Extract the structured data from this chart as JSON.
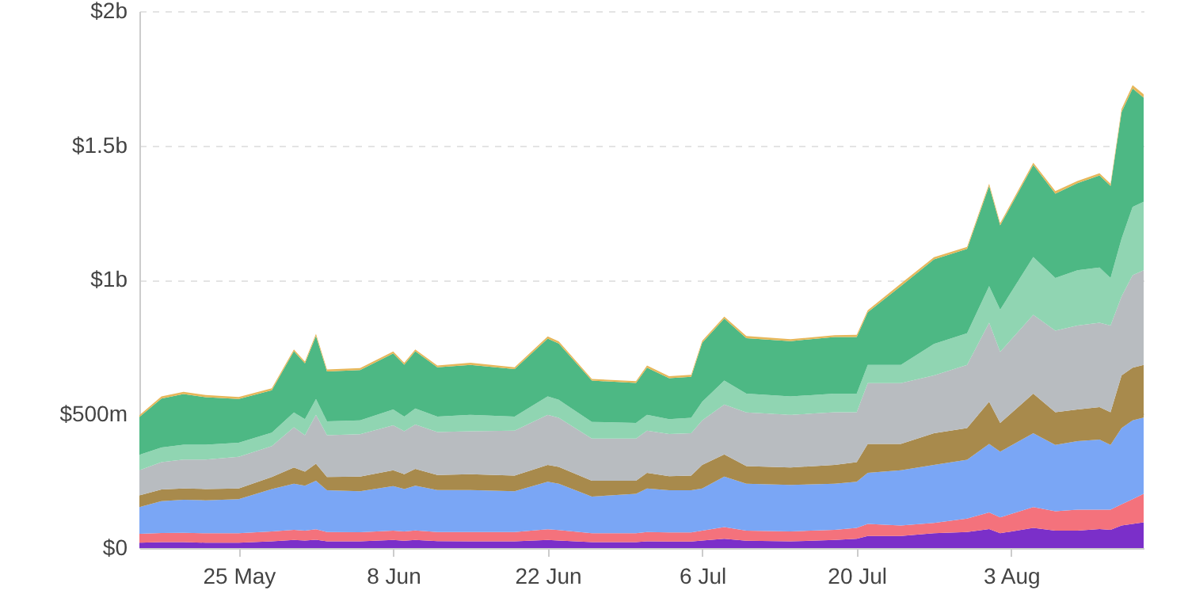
{
  "chart_data": {
    "type": "area",
    "stacked": true,
    "grid": "y",
    "x": [
      "--05-16",
      "--05-18",
      "--05-20",
      "--05-22",
      "--05-25",
      "--05-28",
      "--05-30",
      "--05-31",
      "--06-01",
      "--06-02",
      "--06-05",
      "--06-08",
      "--06-09",
      "--06-10",
      "--06-12",
      "--06-15",
      "--06-19",
      "--06-22",
      "--06-23",
      "--06-26",
      "--06-30",
      "--07-01",
      "--07-03",
      "--07-05",
      "--07-06",
      "--07-08",
      "--07-10",
      "--07-14",
      "--07-18",
      "--07-20",
      "--07-21",
      "--07-24",
      "--07-27",
      "--07-30",
      "--08-01",
      "--08-02",
      "--08-05",
      "--08-07",
      "--08-09",
      "--08-11",
      "--08-12",
      "--08-13",
      "--08-14",
      "--08-15"
    ],
    "xlim": [
      "--05-16",
      "--08-15"
    ],
    "xticks": [
      {
        "value": "--05-25",
        "label": "25 May"
      },
      {
        "value": "--06-08",
        "label": "8 Jun"
      },
      {
        "value": "--06-22",
        "label": "22 Jun"
      },
      {
        "value": "--07-06",
        "label": "6 Jul"
      },
      {
        "value": "--07-20",
        "label": "20 Jul"
      },
      {
        "value": "--08-03",
        "label": "3 Aug"
      }
    ],
    "ylim": [
      0,
      2000000000
    ],
    "yticks": [
      {
        "value": 0,
        "label": "$0"
      },
      {
        "value": 500000000,
        "label": "$500m"
      },
      {
        "value": 1000000000,
        "label": "$1b"
      },
      {
        "value": 1500000000,
        "label": "$1.5b"
      },
      {
        "value": 2000000000,
        "label": "$2b"
      }
    ],
    "series": [
      {
        "color": "#7b2fc9",
        "values": [
          20000000,
          22000000,
          22000000,
          20000000,
          20000000,
          25000000,
          30000000,
          28000000,
          31000000,
          25000000,
          25000000,
          30000000,
          27000000,
          30000000,
          26000000,
          25000000,
          25000000,
          30000000,
          28000000,
          22000000,
          22000000,
          25000000,
          24000000,
          24000000,
          28000000,
          35000000,
          27000000,
          25000000,
          30000000,
          35000000,
          45000000,
          45000000,
          55000000,
          60000000,
          71000000,
          55000000,
          75000000,
          65000000,
          65000000,
          71000000,
          68000000,
          84000000,
          90000000,
          96000000
        ]
      },
      {
        "color": "#f4727c",
        "values": [
          33000000,
          34000000,
          35000000,
          35000000,
          35000000,
          37000000,
          38000000,
          37000000,
          39000000,
          35000000,
          34000000,
          35000000,
          35000000,
          36000000,
          34000000,
          35000000,
          35000000,
          40000000,
          39000000,
          33000000,
          33000000,
          35000000,
          34000000,
          34000000,
          37000000,
          43000000,
          38000000,
          37000000,
          38000000,
          40000000,
          45000000,
          39000000,
          39000000,
          50000000,
          62000000,
          59000000,
          78000000,
          72000000,
          78000000,
          72000000,
          75000000,
          79000000,
          92000000,
          106000000
        ]
      },
      {
        "color": "#7aa6f5",
        "values": [
          100000000,
          119000000,
          123000000,
          123000000,
          127000000,
          158000000,
          172000000,
          167000000,
          181000000,
          155000000,
          153000000,
          166000000,
          158000000,
          166000000,
          156000000,
          156000000,
          152000000,
          177000000,
          173000000,
          137000000,
          147000000,
          162000000,
          157000000,
          157000000,
          157000000,
          188000000,
          175000000,
          173000000,
          172000000,
          172000000,
          190000000,
          206000000,
          216000000,
          219000000,
          255000000,
          245000000,
          275000000,
          247000000,
          255000000,
          261000000,
          241000000,
          284000000,
          294000000,
          284000000
        ]
      },
      {
        "color": "#a88a4c",
        "values": [
          43000000,
          43000000,
          42000000,
          42000000,
          40000000,
          45000000,
          60000000,
          53000000,
          63000000,
          50000000,
          54000000,
          59000000,
          55000000,
          63000000,
          56000000,
          59000000,
          58000000,
          63000000,
          62000000,
          59000000,
          49000000,
          58000000,
          53000000,
          55000000,
          88000000,
          83000000,
          65000000,
          65000000,
          70000000,
          73000000,
          108000000,
          98000000,
          118000000,
          118000000,
          157000000,
          107000000,
          147000000,
          122000000,
          118000000,
          121000000,
          122000000,
          196000000,
          196000000,
          196000000
        ]
      },
      {
        "color": "#b8bcc0",
        "values": [
          94000000,
          102000000,
          108000000,
          110000000,
          118000000,
          115000000,
          150000000,
          135000000,
          182000000,
          155000000,
          158000000,
          167000000,
          160000000,
          165000000,
          160000000,
          160000000,
          167000000,
          186000000,
          183000000,
          157000000,
          157000000,
          157000000,
          157000000,
          158000000,
          166000000,
          186000000,
          200000000,
          196000000,
          196000000,
          186000000,
          226000000,
          226000000,
          215000000,
          235000000,
          294000000,
          265000000,
          294000000,
          304000000,
          313000000,
          314000000,
          323000000,
          294000000,
          344000000,
          353000000
        ]
      },
      {
        "color": "#90d5b2",
        "values": [
          57000000,
          55000000,
          55000000,
          55000000,
          52000000,
          50000000,
          55000000,
          60000000,
          59000000,
          52000000,
          52000000,
          59000000,
          55000000,
          60000000,
          58000000,
          61000000,
          53000000,
          69000000,
          67000000,
          62000000,
          58000000,
          59000000,
          55000000,
          57000000,
          69000000,
          89000000,
          70000000,
          69000000,
          69000000,
          69000000,
          68000000,
          68000000,
          117000000,
          118000000,
          137000000,
          157000000,
          215000000,
          196000000,
          206000000,
          206000000,
          177000000,
          216000000,
          255000000,
          255000000
        ]
      },
      {
        "color": "#4db884",
        "values": [
          141000000,
          182000000,
          189000000,
          177000000,
          163000000,
          158000000,
          228000000,
          208000000,
          235000000,
          186000000,
          187000000,
          209000000,
          193000000,
          213000000,
          183000000,
          186000000,
          177000000,
          215000000,
          210000000,
          154000000,
          149000000,
          176000000,
          153000000,
          153000000,
          220000000,
          231000000,
          207000000,
          206000000,
          211000000,
          211000000,
          196000000,
          294000000,
          315000000,
          314000000,
          373000000,
          314000000,
          343000000,
          314000000,
          324000000,
          343000000,
          343000000,
          471000000,
          441000000,
          388000000
        ]
      },
      {
        "color": "#e6b75a",
        "values": [
          7000000,
          8000000,
          8000000,
          8000000,
          8000000,
          7000000,
          7000000,
          7000000,
          8000000,
          7000000,
          7000000,
          7000000,
          7000000,
          7000000,
          7000000,
          8000000,
          6000000,
          8000000,
          8000000,
          6000000,
          7000000,
          8000000,
          7000000,
          7000000,
          7000000,
          7000000,
          8000000,
          7000000,
          7000000,
          8000000,
          8000000,
          9000000,
          8000000,
          8000000,
          8000000,
          8000000,
          8000000,
          10000000,
          8000000,
          8000000,
          8000000,
          12000000,
          12000000,
          12000000
        ]
      }
    ]
  }
}
